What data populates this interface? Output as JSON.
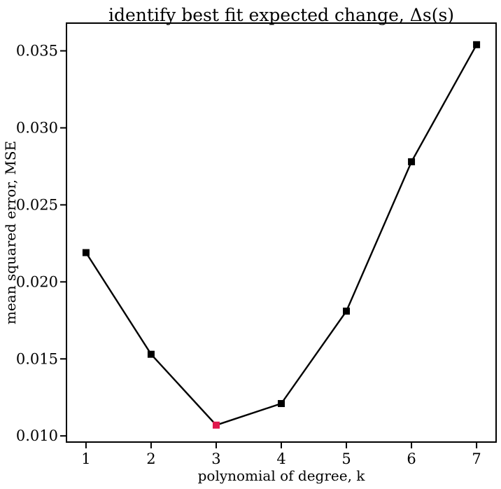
{
  "chart_data": {
    "type": "line",
    "title": "identify best fit expected change, Δs(s)",
    "xlabel": "polynomial of degree, k",
    "ylabel": "mean squared error, MSE",
    "x": [
      1,
      2,
      3,
      4,
      5,
      6,
      7
    ],
    "series": [
      {
        "values": [
          0.0219,
          0.0153,
          0.0107,
          0.0121,
          0.0181,
          0.0278,
          0.0354
        ],
        "color": "#000000",
        "marker": "square"
      }
    ],
    "highlight": {
      "x": 3,
      "y": 0.0107,
      "color": "#e0194e"
    },
    "xlim": [
      0.7,
      7.3
    ],
    "ylim": [
      0.0096,
      0.0368
    ],
    "xticks": [
      1,
      2,
      3,
      4,
      5,
      6,
      7
    ],
    "xtick_labels": [
      "1",
      "2",
      "3",
      "4",
      "5",
      "6",
      "7"
    ],
    "yticks": [
      0.01,
      0.015,
      0.02,
      0.025,
      0.03,
      0.035
    ],
    "ytick_labels": [
      "0.010",
      "0.015",
      "0.020",
      "0.025",
      "0.030",
      "0.035"
    ],
    "grid": false,
    "legend": "none"
  }
}
